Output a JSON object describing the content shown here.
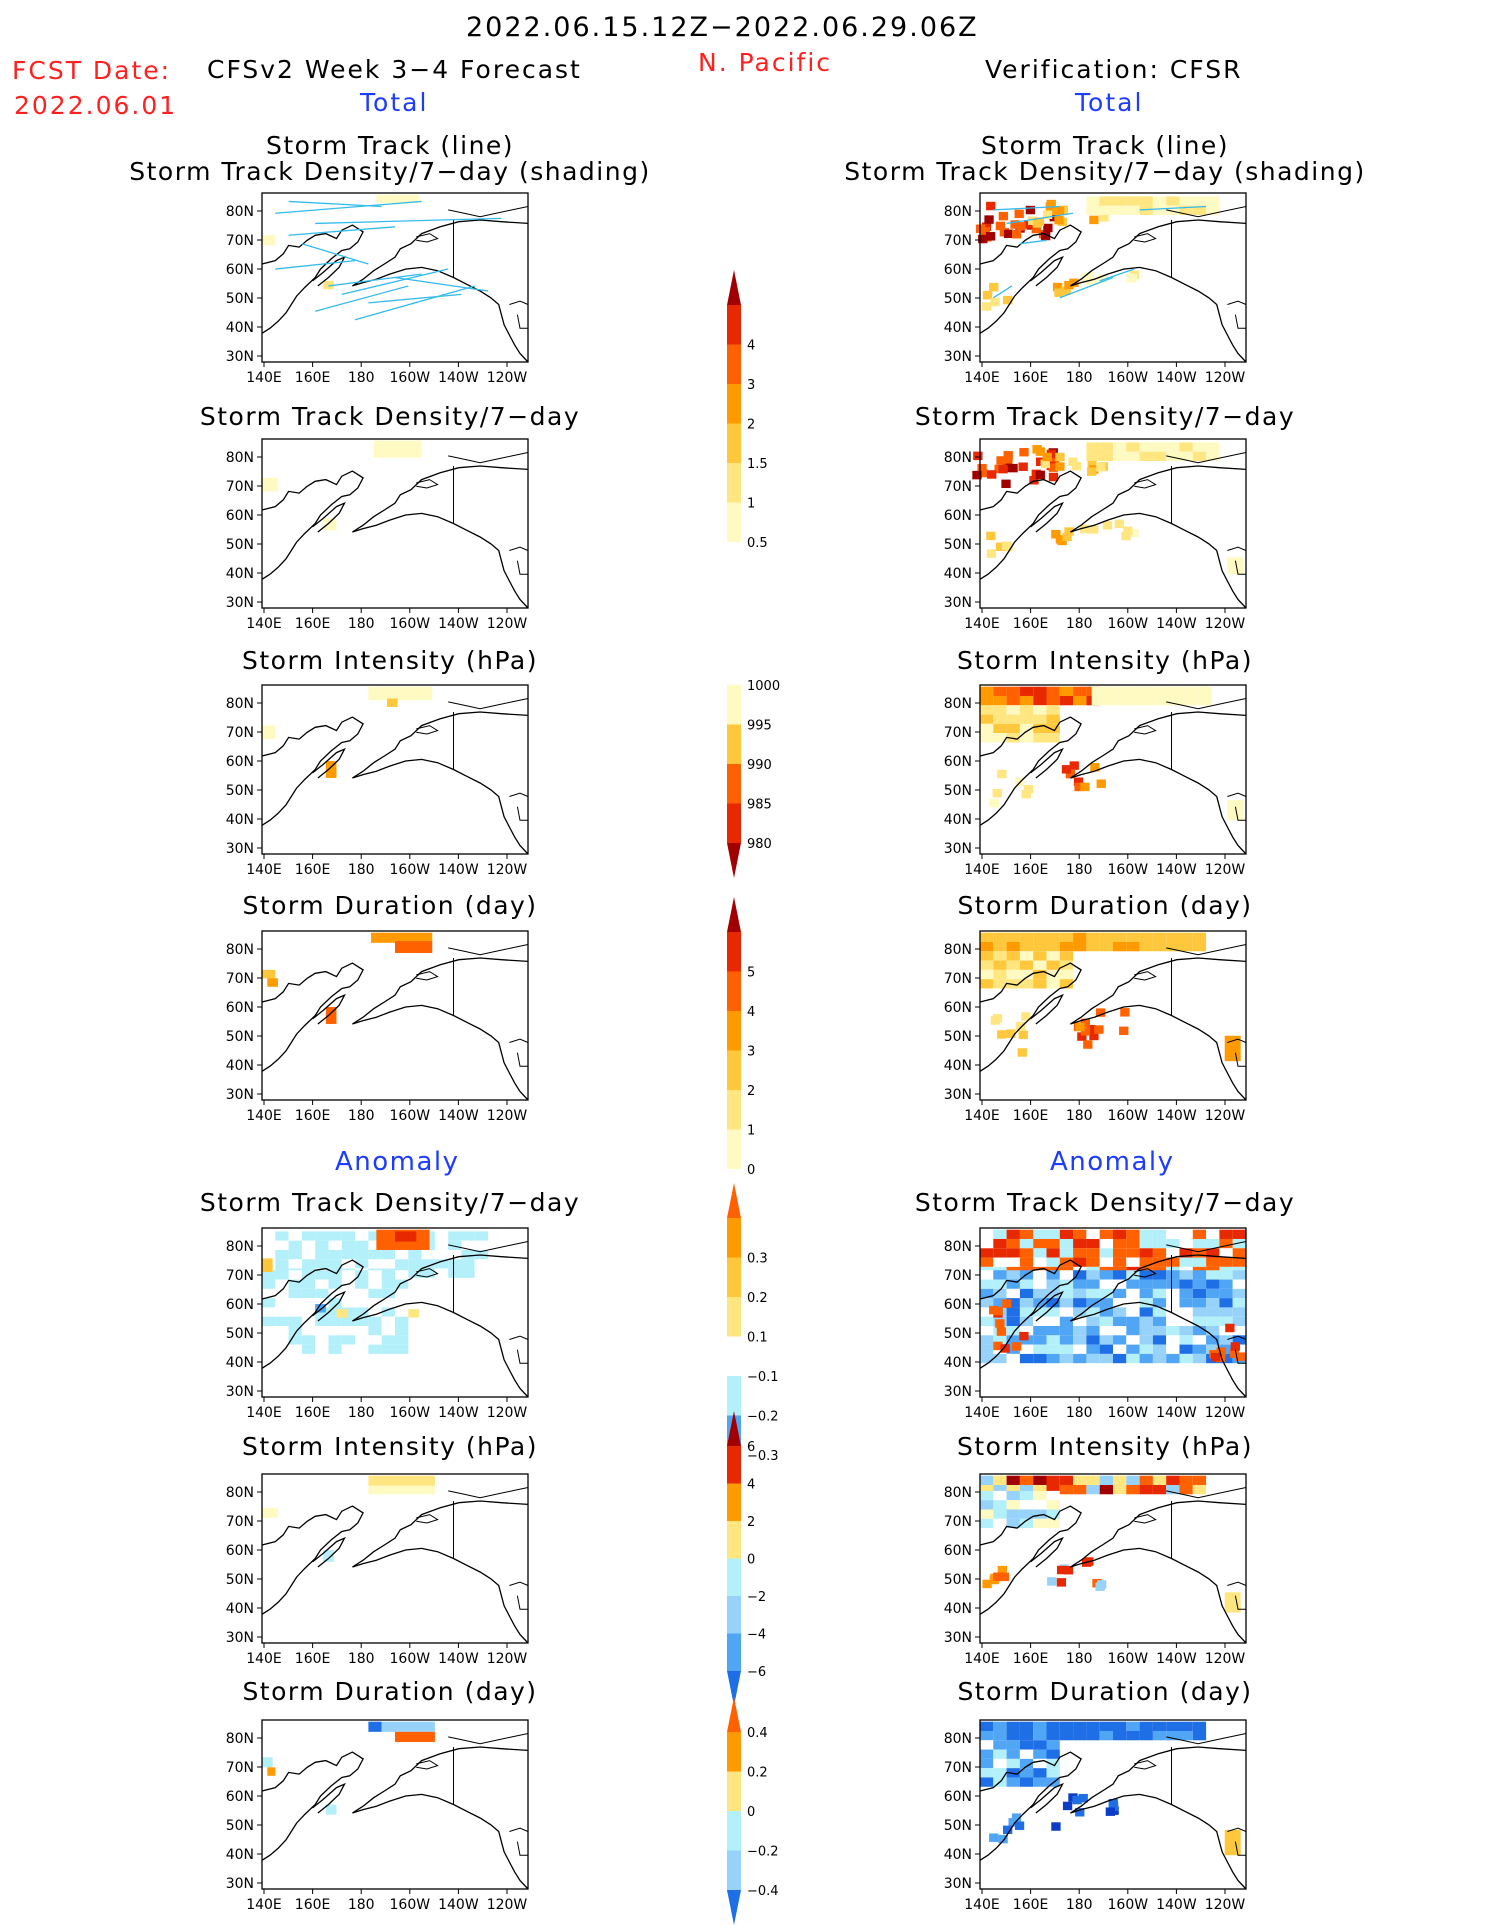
{
  "header": {
    "date_range": "2022.06.15.12Z−2022.06.29.06Z",
    "fcst_date_label": "FCST Date:",
    "fcst_date_value": "2022.06.01",
    "forecast_title": "CFSv2 Week 3−4 Forecast",
    "region": "N. Pacific",
    "verification_title": "Verification: CFSR",
    "total_label_left": "Total",
    "total_label_right": "Total",
    "anomaly_label_left": "Anomaly",
    "anomaly_label_right": "Anomaly"
  },
  "panel_titles": {
    "track_line": "Storm Track (line)",
    "track_shading": "Storm Track Density/7−day (shading)",
    "density": "Storm Track Density/7−day",
    "intensity": "Storm Intensity (hPa)",
    "duration": "Storm Duration (day)"
  },
  "axes": {
    "lat_labels": [
      "80N",
      "70N",
      "60N",
      "50N",
      "40N",
      "30N"
    ],
    "lon_labels": [
      "140E",
      "160E",
      "180",
      "160W",
      "140W",
      "120W"
    ]
  },
  "colorbars": {
    "density_total": [
      "4",
      "3",
      "2",
      "1.5",
      "1",
      "0.5"
    ],
    "intensity_total": [
      "1000",
      "995",
      "990",
      "985",
      "980"
    ],
    "duration_total": [
      "5",
      "4",
      "3",
      "2",
      "1",
      "0"
    ],
    "density_anom": [
      "0.3",
      "0.2",
      "0.1",
      "−0.1",
      "−0.2",
      "−0.3"
    ],
    "intensity_anom": [
      "6",
      "4",
      "2",
      "0",
      "−2",
      "−4",
      "−6"
    ],
    "duration_anom": [
      "0.4",
      "0.2",
      "0",
      "−0.2",
      "−0.4"
    ]
  },
  "colors": {
    "warm": [
      "#fff9c2",
      "#ffe680",
      "#ffc83c",
      "#ff9a00",
      "#ff6000",
      "#e82800",
      "#a00000"
    ],
    "cool": [
      "#ffffff",
      "#b4f0fa",
      "#96d2fa",
      "#50a5f5",
      "#1e6ee6",
      "#0a3cc8"
    ],
    "track_lines": "#33bbee",
    "label_red": "#ff2020",
    "label_blue": "#1e3cff"
  }
}
